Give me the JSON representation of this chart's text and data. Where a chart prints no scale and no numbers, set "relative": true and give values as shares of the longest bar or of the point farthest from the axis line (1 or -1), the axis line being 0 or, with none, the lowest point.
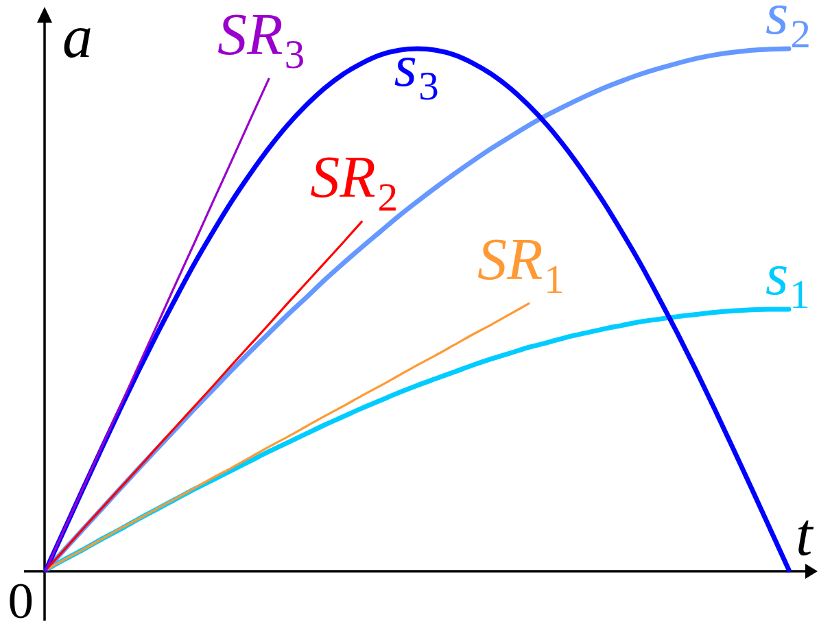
{
  "chart_data": {
    "type": "line",
    "relative": true,
    "xlabel": "t",
    "ylabel": "a",
    "annotations": [
      "0"
    ],
    "categories": [
      null,
      null,
      null,
      null,
      null,
      null,
      null,
      null,
      null,
      null,
      null,
      null,
      null,
      null,
      null,
      null,
      null,
      null,
      null,
      null,
      null,
      null,
      null,
      null,
      null,
      null,
      null,
      null,
      null,
      null,
      null,
      null,
      null,
      null,
      null,
      null,
      null,
      null,
      null,
      null,
      null
    ],
    "series": [
      {
        "name": "s₁",
        "color": "#00ccff",
        "values": [
          0,
          0.02,
          0.039,
          0.059,
          0.078,
          0.098,
          0.117,
          0.136,
          0.155,
          0.173,
          0.191,
          0.209,
          0.227,
          0.244,
          0.261,
          0.278,
          0.294,
          0.31,
          0.325,
          0.34,
          0.354,
          0.367,
          0.38,
          0.393,
          0.405,
          0.416,
          0.427,
          0.436,
          0.446,
          0.454,
          0.462,
          0.469,
          0.476,
          0.481,
          0.486,
          0.49,
          0.494,
          0.497,
          0.499,
          0.5,
          0.5
        ]
      },
      {
        "name": "s₂",
        "color": "#6699ff",
        "values": [
          0,
          0.039,
          0.078,
          0.117,
          0.156,
          0.195,
          0.233,
          0.271,
          0.309,
          0.346,
          0.383,
          0.419,
          0.454,
          0.489,
          0.522,
          0.556,
          0.588,
          0.619,
          0.649,
          0.679,
          0.707,
          0.734,
          0.76,
          0.785,
          0.809,
          0.831,
          0.853,
          0.873,
          0.891,
          0.908,
          0.924,
          0.938,
          0.951,
          0.962,
          0.972,
          0.981,
          0.988,
          0.993,
          0.997,
          0.999,
          1
        ]
      },
      {
        "name": "s₃",
        "color": "#0000ff",
        "values": [
          0,
          0.078,
          0.156,
          0.233,
          0.309,
          0.383,
          0.454,
          0.522,
          0.588,
          0.649,
          0.707,
          0.76,
          0.809,
          0.853,
          0.891,
          0.924,
          0.951,
          0.972,
          0.988,
          0.997,
          1,
          0.997,
          0.988,
          0.972,
          0.951,
          0.924,
          0.891,
          0.853,
          0.809,
          0.76,
          0.707,
          0.649,
          0.588,
          0.522,
          0.454,
          0.383,
          0.309,
          0.233,
          0.156,
          0.078,
          0
        ]
      },
      {
        "name": "SR₁",
        "color": "#ff9933",
        "values": [
          0,
          0.02,
          0.039,
          0.059,
          0.079,
          0.098,
          0.118,
          0.137,
          0.157,
          0.177,
          0.196,
          0.216,
          0.236,
          0.255,
          0.275,
          0.295,
          0.314,
          0.334,
          0.353,
          0.373,
          0.393,
          0.412,
          0.432,
          0.452,
          0.471,
          0.491,
          0.511,
          null,
          null,
          null,
          null,
          null,
          null,
          null,
          null,
          null,
          null,
          null,
          null,
          null,
          null
        ]
      },
      {
        "name": "SR₂",
        "color": "#ff0000",
        "values": [
          0,
          0.039,
          0.079,
          0.118,
          0.157,
          0.196,
          0.236,
          0.275,
          0.314,
          0.353,
          0.393,
          0.432,
          0.471,
          0.511,
          0.55,
          0.589,
          0.628,
          0.668,
          null,
          null,
          null,
          null,
          null,
          null,
          null,
          null,
          null,
          null,
          null,
          null,
          null,
          null,
          null,
          null,
          null,
          null,
          null,
          null,
          null,
          null,
          null
        ]
      },
      {
        "name": "SR₃",
        "color": "#9900cc",
        "values": [
          0,
          0.079,
          0.157,
          0.236,
          0.314,
          0.393,
          0.471,
          0.55,
          0.628,
          0.707,
          0.785,
          0.864,
          0.942,
          null,
          null,
          null,
          null,
          null,
          null,
          null,
          null,
          null,
          null,
          null,
          null,
          null,
          null,
          null,
          null,
          null,
          null,
          null,
          null,
          null,
          null,
          null,
          null,
          null,
          null,
          null,
          null
        ]
      }
    ]
  }
}
